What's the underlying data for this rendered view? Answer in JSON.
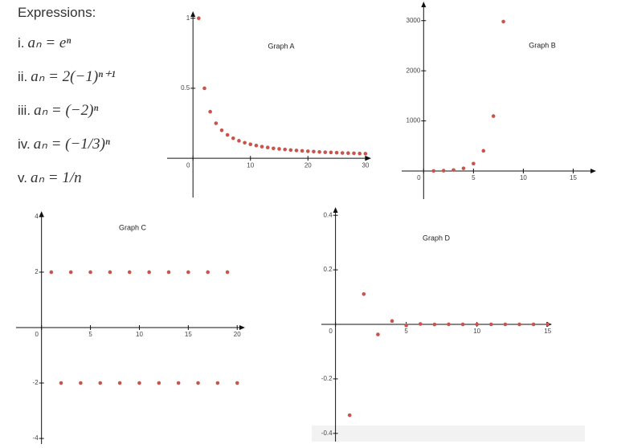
{
  "heading": "Expressions:",
  "expressions": [
    {
      "label": "i.",
      "formula": "aₙ = eⁿ"
    },
    {
      "label": "ii.",
      "formula": "aₙ = 2(−1)ⁿ⁺¹"
    },
    {
      "label": "iii.",
      "formula": "aₙ = (−2)ⁿ"
    },
    {
      "label": "iv.",
      "formula": "aₙ = (−1/3)ⁿ"
    },
    {
      "label": "v.",
      "formula": "aₙ = 1/n"
    }
  ],
  "chart_data": [
    {
      "type": "scatter",
      "title": "Graph A",
      "color": "#c9544b",
      "x": [
        1,
        2,
        3,
        4,
        5,
        6,
        7,
        8,
        9,
        10,
        11,
        12,
        13,
        14,
        15,
        16,
        17,
        18,
        19,
        20,
        21,
        22,
        23,
        24,
        25,
        26,
        27,
        28,
        29,
        30
      ],
      "values": [
        1,
        0.5,
        0.333,
        0.25,
        0.2,
        0.167,
        0.143,
        0.125,
        0.111,
        0.1,
        0.091,
        0.083,
        0.077,
        0.071,
        0.067,
        0.063,
        0.059,
        0.056,
        0.053,
        0.05,
        0.048,
        0.045,
        0.043,
        0.042,
        0.04,
        0.038,
        0.037,
        0.036,
        0.034,
        0.033
      ],
      "xlim": [
        -4.5,
        31
      ],
      "ylim": [
        -0.28,
        1.05
      ],
      "xticks": [
        0,
        10,
        20,
        30
      ],
      "yticks": [
        0.5,
        1
      ]
    },
    {
      "type": "scatter",
      "title": "Graph B",
      "color": "#c9544b",
      "x": [
        1,
        2,
        3,
        4,
        5,
        6,
        7,
        8
      ],
      "values": [
        2.7,
        7.4,
        20.1,
        54.6,
        148.4,
        403.4,
        1096.6,
        2981
      ],
      "xlim": [
        -2.2,
        17.3
      ],
      "ylim": [
        -560,
        3380
      ],
      "xticks": [
        0,
        5,
        10,
        15
      ],
      "yticks": [
        1000,
        2000,
        3000
      ]
    },
    {
      "type": "scatter",
      "title": "Graph C",
      "color": "#c9544b",
      "x": [
        1,
        2,
        3,
        4,
        5,
        6,
        7,
        8,
        9,
        10,
        11,
        12,
        13,
        14,
        15,
        16,
        17,
        18,
        19,
        20
      ],
      "values": [
        2,
        -2,
        2,
        -2,
        2,
        -2,
        2,
        -2,
        2,
        -2,
        2,
        -2,
        2,
        -2,
        2,
        -2,
        2,
        -2,
        2,
        -2
      ],
      "xlim": [
        -2.6,
        20.8
      ],
      "ylim": [
        -4.2,
        4.2
      ],
      "xticks": [
        0,
        5,
        10,
        15,
        20
      ],
      "yticks": [
        -4,
        -2,
        2,
        4
      ]
    },
    {
      "type": "scatter",
      "title": "Graph D",
      "color": "#c9544b",
      "x": [
        1,
        2,
        3,
        4,
        5,
        6,
        7,
        8,
        9,
        10,
        11,
        12,
        13,
        14,
        15
      ],
      "values": [
        -0.3333,
        0.1111,
        -0.037,
        0.0123,
        -0.0041,
        0.0014,
        -0.0005,
        0.0002,
        -0.0001,
        0,
        0,
        0,
        0,
        0,
        0
      ],
      "xlim": [
        -1,
        15.3
      ],
      "ylim": [
        -0.43,
        0.43
      ],
      "xticks": [
        0,
        5,
        10,
        15
      ],
      "yticks": [
        -0.4,
        -0.2,
        0.2,
        0.4
      ]
    }
  ]
}
